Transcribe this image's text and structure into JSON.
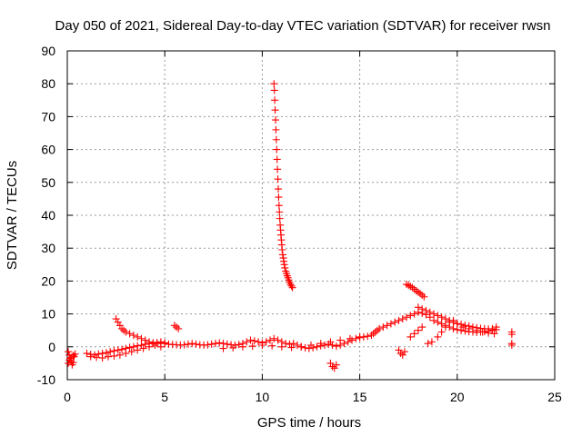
{
  "chart_data": {
    "type": "scatter",
    "title": "Day 050 of 2021, Sidereal Day-to-day VTEC variation (SDTVAR) for receiver rwsn",
    "xlabel": "GPS time / hours",
    "ylabel": "SDTVAR / TECUs",
    "xlim": [
      0,
      25
    ],
    "ylim": [
      -10,
      90
    ],
    "xticks": [
      "0",
      "5",
      "10",
      "15",
      "20",
      "25"
    ],
    "yticks": [
      "-10",
      "0",
      "10",
      "20",
      "30",
      "40",
      "50",
      "60",
      "70",
      "80",
      "90"
    ],
    "grid": true,
    "marker": "+",
    "color": "#ff0000",
    "series": [
      {
        "name": "SDTVAR",
        "x": [
          0.05,
          0.1,
          0.15,
          0.2,
          0.25,
          0.3,
          0.35,
          0.4,
          0.3,
          0.2,
          0.1,
          0.05,
          1.0,
          1.2,
          1.4,
          1.6,
          1.8,
          2.0,
          2.2,
          2.4,
          2.6,
          2.8,
          3.0,
          3.2,
          3.4,
          3.6,
          3.8,
          4.0,
          4.2,
          4.4,
          4.6,
          4.8,
          5.0,
          5.2,
          5.4,
          5.6,
          5.8,
          6.0,
          6.2,
          6.4,
          6.6,
          6.8,
          7.0,
          7.2,
          7.4,
          7.6,
          7.8,
          8.0,
          8.2,
          8.4,
          8.6,
          8.8,
          9.0,
          9.2,
          9.4,
          9.6,
          9.8,
          10.0,
          10.2,
          10.4,
          10.6,
          10.8,
          11.0,
          11.2,
          11.4,
          11.6,
          11.8,
          12.0,
          12.2,
          12.4,
          12.6,
          12.8,
          13.0,
          13.2,
          13.4,
          13.6,
          13.8,
          14.0,
          14.2,
          14.4,
          14.6,
          14.8,
          15.0,
          15.2,
          15.4,
          15.6,
          1.2,
          1.5,
          1.8,
          2.1,
          2.4,
          2.7,
          3.0,
          3.3,
          3.6,
          3.9,
          4.2,
          4.5,
          4.8,
          2.5,
          2.6,
          2.7,
          2.8,
          2.9,
          3.0,
          3.2,
          3.4,
          3.6,
          3.8,
          4.0,
          4.2,
          4.4,
          4.6,
          4.8,
          5.0,
          5.5,
          5.6,
          5.7,
          8.0,
          8.5,
          9.0,
          9.5,
          10.0,
          10.5,
          11.0,
          11.5,
          12.0,
          12.5,
          13.0,
          13.5,
          14.0,
          14.5,
          15.0,
          10.6,
          10.62,
          10.64,
          10.66,
          10.68,
          10.7,
          10.72,
          10.74,
          10.76,
          10.78,
          10.8,
          10.82,
          10.84,
          10.86,
          10.88,
          10.9,
          10.92,
          10.94,
          10.96,
          10.98,
          11.0,
          11.02,
          11.05,
          11.08,
          11.1,
          11.13,
          11.16,
          11.2,
          11.24,
          11.28,
          11.32,
          11.36,
          11.4,
          11.45,
          11.5,
          11.55,
          13.5,
          13.6,
          13.7,
          13.8,
          15.7,
          15.8,
          15.9,
          16.0,
          16.2,
          16.4,
          16.6,
          16.8,
          17.0,
          17.2,
          17.4,
          17.6,
          17.8,
          18.0,
          18.2,
          18.4,
          18.6,
          18.8,
          19.0,
          19.2,
          19.4,
          19.6,
          19.8,
          20.0,
          20.2,
          20.4,
          20.6,
          20.8,
          21.0,
          21.2,
          21.4,
          21.6,
          21.8,
          22.0,
          17.0,
          17.1,
          17.2,
          17.3,
          17.4,
          17.5,
          17.6,
          17.7,
          17.8,
          17.9,
          18.0,
          18.1,
          18.2,
          18.3,
          18.0,
          18.2,
          18.4,
          18.6,
          18.8,
          19.0,
          19.2,
          19.4,
          19.6,
          19.8,
          20.0,
          20.2,
          20.4,
          20.6,
          20.8,
          21.0,
          21.2,
          21.4,
          21.6,
          21.8,
          22.0,
          17.6,
          17.8,
          18.0,
          18.2,
          18.5,
          18.7,
          19.0,
          19.2,
          19.4,
          19.6,
          19.8,
          20.0,
          20.3,
          20.6,
          21.0,
          21.3,
          21.6,
          21.9,
          22.8,
          22.8,
          22.8,
          22.8
        ],
        "y": [
          -1.5,
          -2.5,
          -3.5,
          -4.5,
          -5.5,
          -4.8,
          -3.0,
          -2.2,
          -2.6,
          -3.3,
          -4.0,
          -5.0,
          -2.0,
          -2.3,
          -2.5,
          -2.2,
          -2.0,
          -1.8,
          -1.5,
          -1.2,
          -1.0,
          -0.8,
          -0.5,
          -0.2,
          0.0,
          0.3,
          0.5,
          0.8,
          1.0,
          1.2,
          1.3,
          1.2,
          1.0,
          0.8,
          0.7,
          0.6,
          0.5,
          0.6,
          0.8,
          1.0,
          0.8,
          0.6,
          0.5,
          0.6,
          0.8,
          1.0,
          1.2,
          1.0,
          0.8,
          0.6,
          0.5,
          0.7,
          1.0,
          1.5,
          2.0,
          1.8,
          1.5,
          1.2,
          1.5,
          2.0,
          2.5,
          2.0,
          1.5,
          1.0,
          0.8,
          1.0,
          0.5,
          0.0,
          -0.3,
          -0.5,
          -0.3,
          0.0,
          0.3,
          0.5,
          0.8,
          0.5,
          0.2,
          0.5,
          1.0,
          1.5,
          2.0,
          2.5,
          2.8,
          3.0,
          3.2,
          3.5,
          -3.0,
          -3.2,
          -3.4,
          -3.0,
          -2.8,
          -2.5,
          -2.0,
          -1.5,
          -1.0,
          -0.5,
          0.0,
          0.5,
          0.0,
          8.5,
          7.5,
          6.5,
          5.5,
          5.0,
          4.5,
          4.0,
          3.5,
          3.0,
          2.5,
          2.0,
          1.5,
          1.0,
          1.0,
          1.5,
          1.2,
          6.5,
          6.0,
          5.5,
          -0.5,
          -0.3,
          0.0,
          0.2,
          0.5,
          0.3,
          0.0,
          -0.2,
          0.0,
          0.5,
          1.0,
          1.5,
          2.0,
          2.5,
          3.0,
          80.0,
          78.0,
          75.0,
          72.0,
          69.0,
          66.0,
          63.0,
          60.0,
          57.0,
          54.0,
          51.0,
          48.0,
          45.5,
          43.0,
          41.0,
          39.0,
          37.0,
          35.5,
          34.0,
          32.5,
          31.0,
          29.5,
          28.0,
          27.0,
          26.0,
          25.0,
          24.0,
          23.0,
          22.3,
          21.6,
          21.0,
          20.3,
          19.6,
          19.0,
          18.5,
          18.0,
          -5.0,
          -6.0,
          -6.5,
          -5.5,
          4.0,
          4.5,
          5.0,
          5.5,
          6.0,
          6.5,
          7.0,
          7.5,
          8.0,
          8.5,
          9.0,
          9.5,
          10.0,
          10.5,
          10.2,
          9.8,
          9.0,
          8.0,
          7.5,
          7.0,
          6.5,
          6.0,
          5.5,
          5.2,
          5.0,
          4.8,
          4.6,
          4.5,
          4.4,
          4.5,
          4.6,
          4.8,
          5.0,
          5.2,
          -1.0,
          -2.0,
          -2.5,
          -1.5,
          19.0,
          18.7,
          18.4,
          18.0,
          17.5,
          17.0,
          16.6,
          16.2,
          15.7,
          15.2,
          12.0,
          11.5,
          11.0,
          10.5,
          10.0,
          9.5,
          9.0,
          8.5,
          8.0,
          7.5,
          7.0,
          6.8,
          6.5,
          6.3,
          6.0,
          5.8,
          5.6,
          5.5,
          5.4,
          5.5,
          6.0,
          3.0,
          4.0,
          5.0,
          6.0,
          1.0,
          1.5,
          3.0,
          4.5,
          6.0,
          7.5,
          8.0,
          7.0,
          6.0,
          5.5,
          5.0,
          4.5,
          4.2,
          4.0,
          4.5,
          3.8,
          1.0,
          0.5
        ]
      }
    ]
  }
}
